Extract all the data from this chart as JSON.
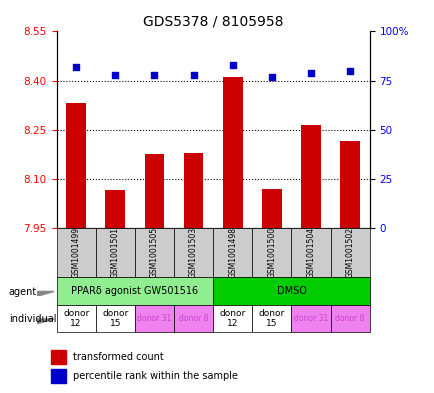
{
  "title": "GDS5378 / 8105958",
  "samples": [
    "GSM1001499",
    "GSM1001501",
    "GSM1001505",
    "GSM1001503",
    "GSM1001498",
    "GSM1001500",
    "GSM1001504",
    "GSM1001502"
  ],
  "transformed_counts": [
    8.33,
    8.065,
    8.175,
    8.18,
    8.41,
    8.07,
    8.265,
    8.215
  ],
  "percentile_ranks": [
    82,
    78,
    78,
    78,
    83,
    77,
    79,
    80
  ],
  "ylim_left": [
    7.95,
    8.55
  ],
  "ylim_right": [
    0,
    100
  ],
  "right_ticks": [
    0,
    25,
    50,
    75,
    100
  ],
  "right_tick_labels": [
    "0",
    "25",
    "50",
    "75",
    "100%"
  ],
  "left_ticks": [
    7.95,
    8.1,
    8.25,
    8.4,
    8.55
  ],
  "bar_color": "#cc0000",
  "dot_color": "#0000cc",
  "agent_groups": [
    {
      "label": "PPARδ agonist GW501516",
      "start": 0,
      "end": 4,
      "color": "#90ee90"
    },
    {
      "label": "DMSO",
      "start": 4,
      "end": 8,
      "color": "#00cc00"
    }
  ],
  "individual_groups": [
    {
      "label": "donor\n12",
      "start": 0,
      "end": 1,
      "color": "#ffffff"
    },
    {
      "label": "donor\n15",
      "start": 1,
      "end": 2,
      "color": "#ffffff"
    },
    {
      "label": "donor 31",
      "start": 2,
      "end": 3,
      "color": "#ee82ee"
    },
    {
      "label": "donor 8",
      "start": 3,
      "end": 4,
      "color": "#ee82ee"
    },
    {
      "label": "donor\n12",
      "start": 4,
      "end": 5,
      "color": "#ffffff"
    },
    {
      "label": "donor\n15",
      "start": 5,
      "end": 6,
      "color": "#ffffff"
    },
    {
      "label": "donor 31",
      "start": 6,
      "end": 7,
      "color": "#ee82ee"
    },
    {
      "label": "donor 8",
      "start": 7,
      "end": 8,
      "color": "#ee82ee"
    }
  ],
  "legend_items": [
    {
      "color": "#cc0000",
      "label": "transformed count"
    },
    {
      "color": "#0000cc",
      "label": "percentile rank within the sample"
    }
  ],
  "arrow_color": "#888888",
  "label_agent": "agent",
  "label_individual": "individual",
  "xticklabel_bg": "#cccccc"
}
